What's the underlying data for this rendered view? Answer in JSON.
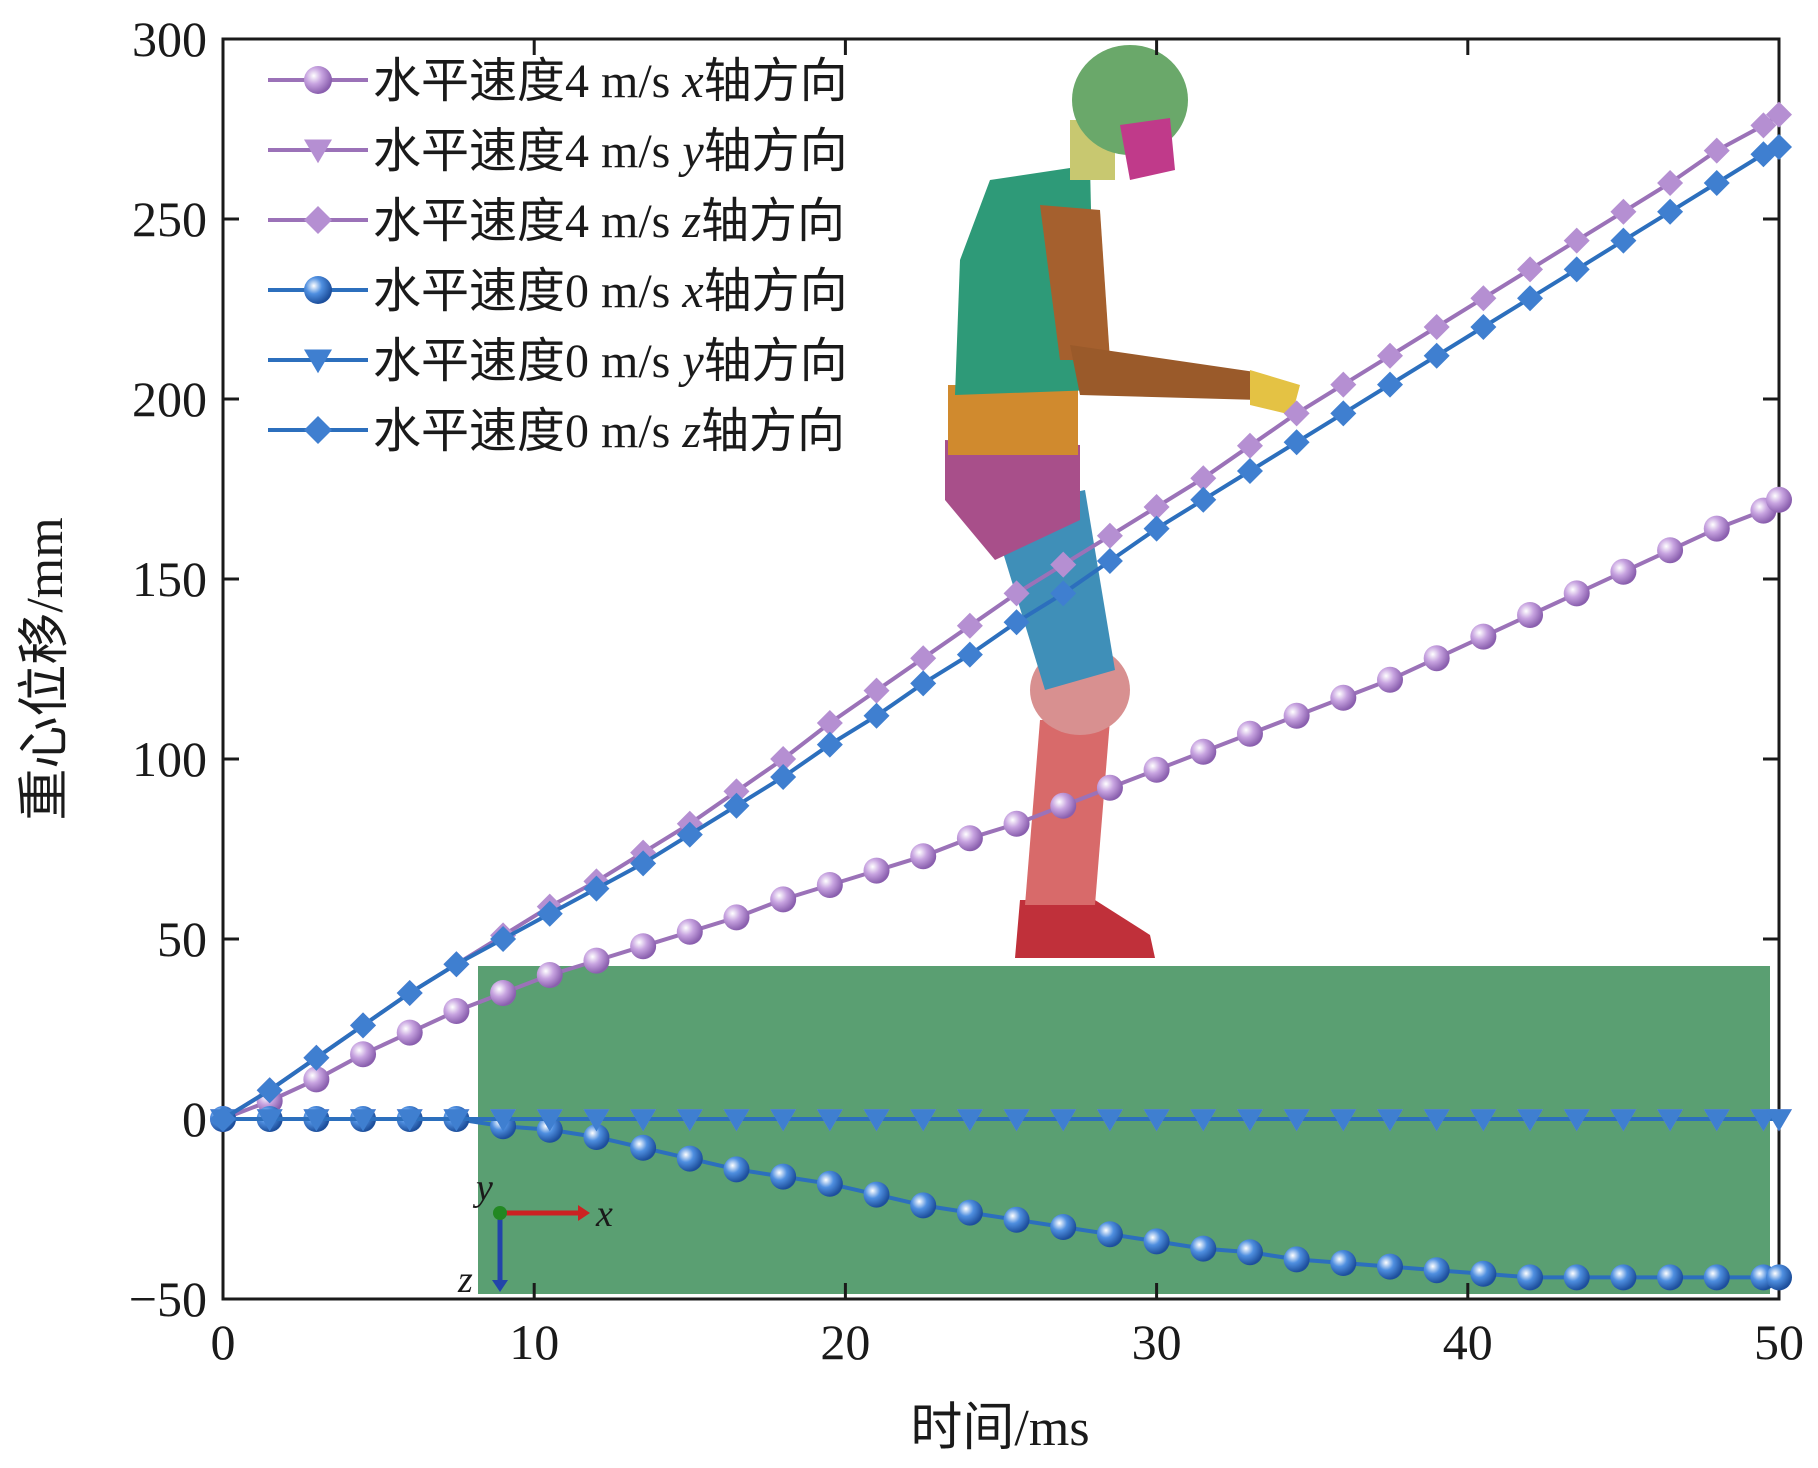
{
  "chart_data": {
    "type": "line",
    "xlabel": "时间/ms",
    "ylabel": "重心位移/mm",
    "xlim": [
      0,
      50
    ],
    "ylim": [
      -50,
      300
    ],
    "xticks": [
      "0",
      "10",
      "20",
      "30",
      "40",
      "50"
    ],
    "yticks": [
      "−50",
      "0",
      "50",
      "100",
      "150",
      "200",
      "250",
      "300"
    ],
    "grid": false,
    "legend_position": "top-left",
    "colors": {
      "purple": "#9b72b8",
      "purple_marker": "#b58fd2",
      "blue": "#2c6fbd",
      "blue_marker": "#3f7fd0",
      "panel": "#5a9f72"
    },
    "series": [
      {
        "name": "水平速度4 m/s x轴方向",
        "legend_prefix": "水平速度4 m/s ",
        "legend_axis": "x",
        "legend_suffix": "轴方向",
        "marker": "sphere",
        "color": "purple",
        "x": [
          0,
          1.5,
          3,
          4.5,
          6,
          7.5,
          9,
          10.5,
          12,
          13.5,
          15,
          16.5,
          18,
          19.5,
          21,
          22.5,
          24,
          25.5,
          27,
          28.5,
          30,
          31.5,
          33,
          34.5,
          36,
          37.5,
          39,
          40.5,
          42,
          43.5,
          45,
          46.5,
          48,
          49.5,
          50
        ],
        "y": [
          0,
          5,
          11,
          18,
          24,
          30,
          35,
          40,
          44,
          48,
          52,
          56,
          61,
          65,
          69,
          73,
          78,
          82,
          87,
          92,
          97,
          102,
          107,
          112,
          117,
          122,
          128,
          134,
          140,
          146,
          152,
          158,
          164,
          169,
          172
        ]
      },
      {
        "name": "水平速度4 m/s y轴方向",
        "legend_prefix": "水平速度4 m/s ",
        "legend_axis": "y",
        "legend_suffix": "轴方向",
        "marker": "triangle",
        "color": "purple",
        "x": [
          0,
          1.5,
          3,
          4.5,
          6,
          7.5,
          9,
          10.5,
          12,
          13.5,
          15,
          16.5,
          18,
          19.5,
          21,
          22.5,
          24,
          25.5,
          27,
          28.5,
          30,
          31.5,
          33,
          34.5,
          36,
          37.5,
          39,
          40.5,
          42,
          43.5,
          45,
          46.5,
          48,
          49.5,
          50
        ],
        "y": [
          0,
          0,
          0,
          0,
          0,
          0,
          0,
          0,
          0,
          0,
          0,
          0,
          0,
          0,
          0,
          0,
          0,
          0,
          0,
          0,
          0,
          0,
          0,
          0,
          0,
          0,
          0,
          0,
          0,
          0,
          0,
          0,
          0,
          0,
          0
        ]
      },
      {
        "name": "水平速度4 m/s z轴方向",
        "legend_prefix": "水平速度4 m/s ",
        "legend_axis": "z",
        "legend_suffix": "轴方向",
        "marker": "diamond",
        "color": "purple",
        "x": [
          0,
          1.5,
          3,
          4.5,
          6,
          7.5,
          9,
          10.5,
          12,
          13.5,
          15,
          16.5,
          18,
          19.5,
          21,
          22.5,
          24,
          25.5,
          27,
          28.5,
          30,
          31.5,
          33,
          34.5,
          36,
          37.5,
          39,
          40.5,
          42,
          43.5,
          45,
          46.5,
          48,
          49.5,
          50
        ],
        "y": [
          0,
          8,
          17,
          26,
          35,
          43,
          51,
          59,
          66,
          74,
          82,
          91,
          100,
          110,
          119,
          128,
          137,
          146,
          154,
          162,
          170,
          178,
          187,
          196,
          204,
          212,
          220,
          228,
          236,
          244,
          252,
          260,
          269,
          276,
          279
        ]
      },
      {
        "name": "水平速度0 m/s x轴方向",
        "legend_prefix": "水平速度0 m/s ",
        "legend_axis": "x",
        "legend_suffix": "轴方向",
        "marker": "sphere",
        "color": "blue",
        "x": [
          0,
          1.5,
          3,
          4.5,
          6,
          7.5,
          9,
          10.5,
          12,
          13.5,
          15,
          16.5,
          18,
          19.5,
          21,
          22.5,
          24,
          25.5,
          27,
          28.5,
          30,
          31.5,
          33,
          34.5,
          36,
          37.5,
          39,
          40.5,
          42,
          43.5,
          45,
          46.5,
          48,
          49.5,
          50
        ],
        "y": [
          0,
          0,
          0,
          0,
          0,
          0,
          -2,
          -3,
          -5,
          -8,
          -11,
          -14,
          -16,
          -18,
          -21,
          -24,
          -26,
          -28,
          -30,
          -32,
          -34,
          -36,
          -37,
          -39,
          -40,
          -41,
          -42,
          -43,
          -44,
          -44,
          -44,
          -44,
          -44,
          -44,
          -44
        ]
      },
      {
        "name": "水平速度0 m/s y轴方向",
        "legend_prefix": "水平速度0 m/s ",
        "legend_axis": "y",
        "legend_suffix": "轴方向",
        "marker": "triangle",
        "color": "blue",
        "x": [
          0,
          1.5,
          3,
          4.5,
          6,
          7.5,
          9,
          10.5,
          12,
          13.5,
          15,
          16.5,
          18,
          19.5,
          21,
          22.5,
          24,
          25.5,
          27,
          28.5,
          30,
          31.5,
          33,
          34.5,
          36,
          37.5,
          39,
          40.5,
          42,
          43.5,
          45,
          46.5,
          48,
          49.5,
          50
        ],
        "y": [
          0,
          0,
          0,
          0,
          0,
          0,
          0,
          0,
          0,
          0,
          0,
          0,
          0,
          0,
          0,
          0,
          0,
          0,
          0,
          0,
          0,
          0,
          0,
          0,
          0,
          0,
          0,
          0,
          0,
          0,
          0,
          0,
          0,
          0,
          0
        ]
      },
      {
        "name": "水平速度0 m/s z轴方向",
        "legend_prefix": "水平速度0 m/s ",
        "legend_axis": "z",
        "legend_suffix": "轴方向",
        "marker": "diamond",
        "color": "blue",
        "x": [
          0,
          1.5,
          3,
          4.5,
          6,
          7.5,
          9,
          10.5,
          12,
          13.5,
          15,
          16.5,
          18,
          19.5,
          21,
          22.5,
          24,
          25.5,
          27,
          28.5,
          30,
          31.5,
          33,
          34.5,
          36,
          37.5,
          39,
          40.5,
          42,
          43.5,
          45,
          46.5,
          48,
          49.5,
          50
        ],
        "y": [
          0,
          8,
          17,
          26,
          35,
          43,
          50,
          57,
          64,
          71,
          79,
          87,
          95,
          104,
          112,
          121,
          129,
          138,
          146,
          155,
          164,
          172,
          180,
          188,
          196,
          204,
          212,
          220,
          228,
          236,
          244,
          252,
          260,
          268,
          270
        ]
      }
    ],
    "inset": {
      "panel_color": "#5a9f72",
      "axis_labels": {
        "x": "x",
        "y": "y",
        "z": "z"
      }
    }
  }
}
